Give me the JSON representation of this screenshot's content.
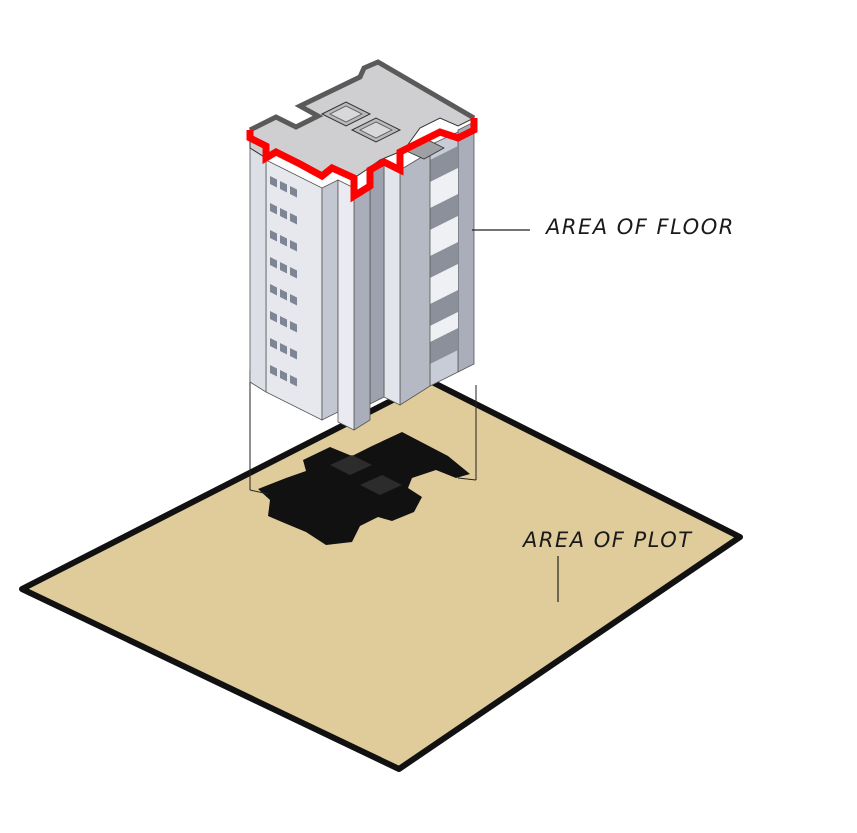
{
  "labels": {
    "floor": "AREA OF FLOOR",
    "plot": "AREA OF PLOT"
  },
  "colors": {
    "plot_fill": "#e0cc9a",
    "plot_border": "#111111",
    "footprint": "#111111",
    "wall_light": "#e6e8ee",
    "wall_mid": "#c8ccd6",
    "wall_dark": "#a9aeba",
    "roof": "#cfcfd1",
    "floor_outline_highlight": "#ff0000",
    "window": "#7e8594"
  }
}
